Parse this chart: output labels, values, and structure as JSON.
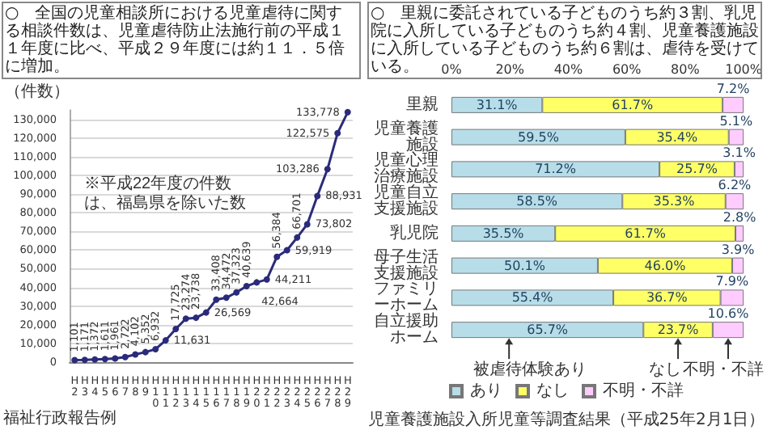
{
  "chart_data": [
    {
      "type": "line",
      "title": "○　全国の児童相談所における児童虐待に関する相談件数は、児童虐待防止法施行前の平成１１年度に比べ、平成２９年度には約１１．５倍に増加。",
      "ylabel": "（件数）",
      "annotations": [
        "※平成22年度の件数は、福島県を除いた数",
        "福祉行政報告例"
      ],
      "categories": [
        "H2",
        "H3",
        "H4",
        "H5",
        "H6",
        "H7",
        "H8",
        "H9",
        "H10",
        "H11",
        "H12",
        "H13",
        "H14",
        "H15",
        "H16",
        "H17",
        "H18",
        "H19",
        "H20",
        "H21",
        "H22",
        "H23",
        "H24",
        "H25",
        "H26",
        "H27",
        "H28",
        "H29"
      ],
      "series": [
        {
          "color": "#2b2b7b",
          "values": [
            1101,
            1171,
            1372,
            1611,
            1961,
            2722,
            4102,
            5352,
            6932,
            11631,
            17725,
            23274,
            23738,
            26569,
            33408,
            34472,
            37323,
            40639,
            42664,
            44211,
            56384,
            59919,
            66701,
            73802,
            88931,
            103286,
            122575,
            133778
          ],
          "value_labels": [
            "1,101",
            "1,171",
            "1,372",
            "1,611",
            "1,961",
            "2,722",
            "4,102",
            "5,352",
            "6,932",
            "11,631",
            "17,725",
            "23,274",
            "23,738",
            "26,569",
            "33,408",
            "34,472",
            "37,323",
            "40,639",
            "42,664",
            "44,211",
            "56,384",
            "59,919",
            "66,701",
            "73,802",
            "88,931",
            "103,286",
            "122,575",
            "133,778"
          ]
        }
      ],
      "ylim": [
        0,
        135000
      ],
      "yticks": [
        0,
        {
          "value": 10000,
          "label": "10,000"
        },
        {
          "value": 20000,
          "label": "20,000"
        },
        {
          "value": 30000,
          "label": "30,000"
        },
        {
          "value": 40000,
          "label": "40,000"
        },
        {
          "value": 50000,
          "label": "50,000"
        },
        {
          "value": 60000,
          "label": "60,000"
        },
        {
          "value": 70000,
          "label": "70,000"
        },
        {
          "value": 80000,
          "label": "80,000"
        },
        {
          "value": 90000,
          "label": "90,000"
        },
        {
          "value": 100000,
          "label": "100,000"
        },
        {
          "value": 110000,
          "label": "110,000"
        },
        {
          "value": 120000,
          "label": "120,000"
        },
        {
          "value": 130000,
          "label": "130,000"
        }
      ],
      "grid": "y",
      "marker": "circle"
    },
    {
      "type": "bar",
      "orientation": "horizontal",
      "stacked": true,
      "title": "○　里親に委託されている子どものうち約３割、乳児院に入所している子どものうち約４割、児童養護施設に入所している子どものうち約６割は、虐待を受けている。",
      "annotations": [
        "被虐待体験あり",
        "なし",
        "不明・不詳",
        "児童養護施設入所児童等調査結果（平成25年2月1日）"
      ],
      "categories": [
        "里親",
        "児童養護施設",
        "児童心理治療施設",
        "児童自立支援施設",
        "乳児院",
        "母子生活支援施設",
        "ファミリーホーム",
        "自立援助ホーム"
      ],
      "series": [
        {
          "name": "あり",
          "color": "#b7dde8",
          "values": [
            31.1,
            59.5,
            71.2,
            58.5,
            35.5,
            50.1,
            55.4,
            65.7
          ],
          "value_labels": [
            "31.1%",
            "59.5%",
            "71.2%",
            "58.5%",
            "35.5%",
            "50.1%",
            "55.4%",
            "65.7%"
          ]
        },
        {
          "name": "なし",
          "color": "#ffff66",
          "values": [
            61.7,
            35.4,
            25.7,
            35.3,
            61.7,
            46.0,
            36.7,
            23.7
          ],
          "value_labels": [
            "61.7%",
            "35.4%",
            "25.7%",
            "35.3%",
            "61.7%",
            "46.0%",
            "36.7%",
            "23.7%"
          ]
        },
        {
          "name": "不明・不詳",
          "color": "#ffccff",
          "values": [
            7.2,
            5.1,
            3.1,
            6.2,
            2.8,
            3.9,
            7.9,
            10.6
          ],
          "value_labels": [
            "7.2%",
            "5.1%",
            "3.1%",
            "6.2%",
            "2.8%",
            "3.9%",
            "7.9%",
            "10.6%"
          ]
        }
      ],
      "xlim": [
        0,
        100
      ],
      "xticks": [
        {
          "value": 0,
          "label": "0%"
        },
        {
          "value": 20,
          "label": "20%"
        },
        {
          "value": 40,
          "label": "40%"
        },
        {
          "value": 60,
          "label": "60%"
        },
        {
          "value": 80,
          "label": "80%"
        },
        {
          "value": 100,
          "label": "100%"
        }
      ],
      "legend": "bottom"
    }
  ]
}
